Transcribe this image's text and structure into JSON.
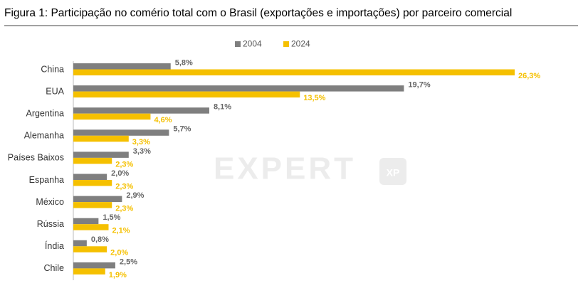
{
  "chart_data": {
    "type": "hbar",
    "title": "Figura 1: Participação no comério total com o Brasil (exportações e importações) por parceiro comercial",
    "categories": [
      "China",
      "EUA",
      "Argentina",
      "Alemanha",
      "Países Baixos",
      "Espanha",
      "México",
      "Rússia",
      "Índia",
      "Chile"
    ],
    "series": [
      {
        "name": "2004",
        "color": "#7f7f7f",
        "values": [
          5.8,
          19.7,
          8.1,
          5.7,
          3.3,
          2.0,
          2.9,
          1.5,
          0.8,
          2.5
        ],
        "value_labels": [
          "5,8%",
          "19,7%",
          "8,1%",
          "5,7%",
          "3,3%",
          "2,0%",
          "2,9%",
          "1,5%",
          "0,8%",
          "2,5%"
        ]
      },
      {
        "name": "2024",
        "color": "#f5c000",
        "values": [
          26.3,
          13.5,
          4.6,
          3.3,
          2.3,
          2.3,
          2.3,
          2.1,
          2.0,
          1.9
        ],
        "value_labels": [
          "26,3%",
          "13,5%",
          "4,6%",
          "3,3%",
          "2,3%",
          "2,3%",
          "2,3%",
          "2,1%",
          "2,0%",
          "1,9%"
        ]
      }
    ],
    "legend": "top",
    "watermark": {
      "text": "EXPERT",
      "badge": "XP"
    }
  }
}
